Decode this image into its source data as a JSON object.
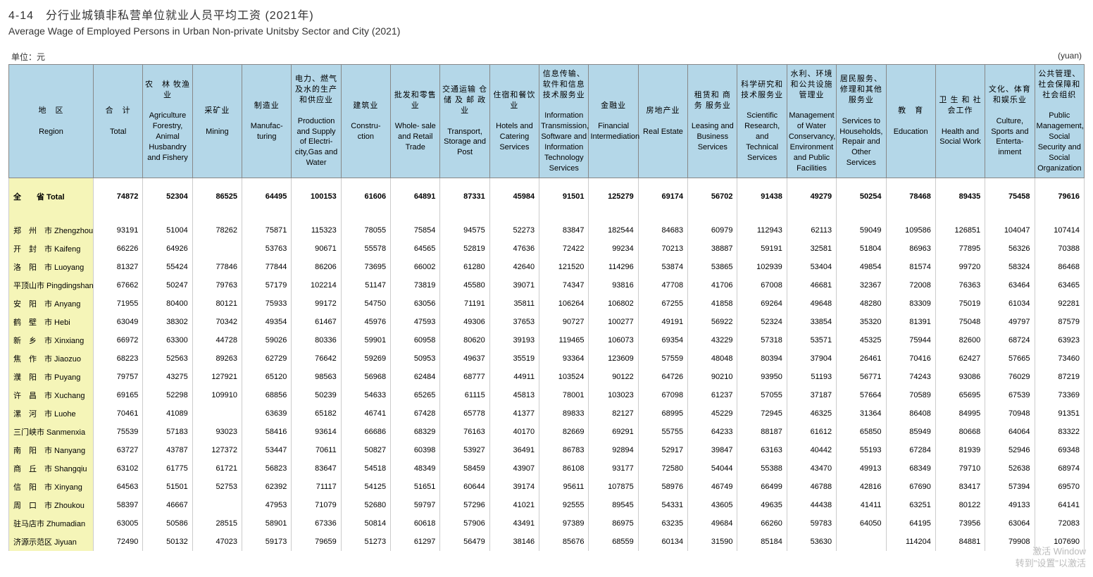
{
  "title": {
    "cn": "4-14　分行业城镇非私营单位就业人员平均工资 (2021年)",
    "en": "Average Wage of Employed Persons in Urban Non-private Unitsby Sector and City (2021)"
  },
  "unit": {
    "left": "单位：元",
    "right": "(yuan)"
  },
  "columns": [
    {
      "cn": "地　区",
      "en": "Region"
    },
    {
      "cn": "合　计",
      "en": "Total"
    },
    {
      "cn": "农　林 牧渔业",
      "en": "Agriculture Forestry, Animal Husbandry and Fishery"
    },
    {
      "cn": "采矿业",
      "en": "Mining"
    },
    {
      "cn": "制造业",
      "en": "Manufac- turing"
    },
    {
      "cn": "电力、燃气及水的生产和供应业",
      "en": "Production and Supply of Electri- city,Gas and Water"
    },
    {
      "cn": "建筑业",
      "en": "Constru- ction"
    },
    {
      "cn": "批发和零售业",
      "en": "Whole- sale and Retail Trade"
    },
    {
      "cn": "交通运输 仓 储 及 邮 政 业",
      "en": "Transport, Storage and Post"
    },
    {
      "cn": "住宿和餐饮业",
      "en": "Hotels and Catering Services"
    },
    {
      "cn": "信息传输、软件和信息技术服务业",
      "en": "Information Transmission, Software and Information Technology Services"
    },
    {
      "cn": "金融业",
      "en": "Financial Intermediation"
    },
    {
      "cn": "房地产业",
      "en": "Real Estate"
    },
    {
      "cn": "租赁和 商　务 服务业",
      "en": "Leasing and Business Services"
    },
    {
      "cn": "科学研究和技术服务业",
      "en": "Scientific Research, and Technical Services"
    },
    {
      "cn": "水利、环境和公共设施管理业",
      "en": "Management of Water Conservancy, Environment and Public Facilities"
    },
    {
      "cn": "居民服务、修理和其他服务业",
      "en": "Services to Households, Repair and Other Services"
    },
    {
      "cn": "教　育",
      "en": "Education"
    },
    {
      "cn": "卫 生 和 社会工作",
      "en": "Health and Social Work"
    },
    {
      "cn": "文化、体育和娱乐业",
      "en": "Culture, Sports and Enterta- inment"
    },
    {
      "cn": "公共管理、社会保障和社会组织",
      "en": "Public Management, Social Security and Social Organization"
    }
  ],
  "rows": [
    {
      "region_cn": "全　　省",
      "region_en": "Total",
      "total": true,
      "v": [
        74872,
        52304,
        86525,
        64495,
        100153,
        61606,
        64891,
        87331,
        45984,
        91501,
        125279,
        69174,
        56702,
        91438,
        49279,
        50254,
        78468,
        89435,
        75458,
        79616
      ]
    },
    {
      "region_cn": "郑　州　市",
      "region_en": "Zhengzhou",
      "v": [
        93191,
        51004,
        78262,
        75871,
        115323,
        78055,
        75854,
        94575,
        52273,
        83847,
        182544,
        84683,
        60979,
        112943,
        62113,
        59049,
        109586,
        126851,
        104047,
        107414
      ]
    },
    {
      "region_cn": "开　封　市",
      "region_en": "Kaifeng",
      "v": [
        66226,
        64926,
        "",
        53763,
        90671,
        55578,
        64565,
        52819,
        47636,
        72422,
        99234,
        70213,
        38887,
        59191,
        32581,
        51804,
        86963,
        77895,
        56326,
        70388
      ]
    },
    {
      "region_cn": "洛　阳　市",
      "region_en": "Luoyang",
      "v": [
        81327,
        55424,
        77846,
        77844,
        86206,
        73695,
        66002,
        61280,
        42640,
        121520,
        114296,
        53874,
        53865,
        102939,
        53404,
        49854,
        81574,
        99720,
        58324,
        86468
      ]
    },
    {
      "region_cn": "平顶山市",
      "region_en": "Pingdingshan",
      "v": [
        67662,
        50247,
        79763,
        57179,
        102214,
        51147,
        73819,
        45580,
        39071,
        74347,
        93816,
        47708,
        41706,
        67008,
        46681,
        32367,
        72008,
        76363,
        63464,
        63465
      ]
    },
    {
      "region_cn": "安　阳　市",
      "region_en": "Anyang",
      "v": [
        71955,
        80400,
        80121,
        75933,
        99172,
        54750,
        63056,
        71191,
        35811,
        106264,
        106802,
        67255,
        41858,
        69264,
        49648,
        48280,
        83309,
        75019,
        61034,
        92281
      ]
    },
    {
      "region_cn": "鹤　壁　市",
      "region_en": "Hebi",
      "v": [
        63049,
        38302,
        70342,
        49354,
        61467,
        45976,
        47593,
        49306,
        37653,
        90727,
        100277,
        49191,
        56922,
        52324,
        33854,
        35320,
        81391,
        75048,
        49797,
        87579
      ]
    },
    {
      "region_cn": "新　乡　市",
      "region_en": "Xinxiang",
      "v": [
        66972,
        63300,
        44728,
        59026,
        80336,
        59901,
        60958,
        80620,
        39193,
        119465,
        106073,
        69354,
        43229,
        57318,
        53571,
        45325,
        75944,
        82600,
        68724,
        63923
      ]
    },
    {
      "region_cn": "焦　作　市",
      "region_en": "Jiaozuo",
      "v": [
        68223,
        52563,
        89263,
        62729,
        76642,
        59269,
        50953,
        49637,
        35519,
        93364,
        123609,
        57559,
        48048,
        80394,
        37904,
        26461,
        70416,
        62427,
        57665,
        73460
      ]
    },
    {
      "region_cn": "濮　阳　市",
      "region_en": "Puyang",
      "v": [
        79757,
        43275,
        127921,
        65120,
        98563,
        56968,
        62484,
        68777,
        44911,
        103524,
        90122,
        64726,
        90210,
        93950,
        51193,
        56771,
        74243,
        93086,
        76029,
        87219
      ]
    },
    {
      "region_cn": "许　昌　市",
      "region_en": "Xuchang",
      "v": [
        69165,
        52298,
        109910,
        68856,
        50239,
        54633,
        65265,
        61115,
        45813,
        78001,
        103023,
        67098,
        61237,
        57055,
        37187,
        57664,
        70589,
        65695,
        67539,
        73369
      ]
    },
    {
      "region_cn": "漯　河　市",
      "region_en": "Luohe",
      "v": [
        70461,
        41089,
        "",
        63639,
        65182,
        46741,
        67428,
        65778,
        41377,
        89833,
        82127,
        68995,
        45229,
        72945,
        46325,
        31364,
        86408,
        84995,
        70948,
        91351
      ]
    },
    {
      "region_cn": "三门峡市",
      "region_en": "Sanmenxia",
      "v": [
        75539,
        57183,
        93023,
        58416,
        93614,
        66686,
        68329,
        76163,
        40170,
        82669,
        69291,
        55755,
        64233,
        88187,
        61612,
        65850,
        85949,
        80668,
        64064,
        83322
      ]
    },
    {
      "region_cn": "南　阳　市",
      "region_en": "Nanyang",
      "v": [
        63727,
        43787,
        127372,
        53447,
        70611,
        50827,
        60398,
        53927,
        36491,
        86783,
        92894,
        52917,
        39847,
        63163,
        40442,
        55193,
        67284,
        81939,
        52946,
        69348
      ]
    },
    {
      "region_cn": "商　丘　市",
      "region_en": "Shangqiu",
      "v": [
        63102,
        61775,
        61721,
        56823,
        83647,
        54518,
        48349,
        58459,
        43907,
        86108,
        93177,
        72580,
        54044,
        55388,
        43470,
        49913,
        68349,
        79710,
        52638,
        68974
      ]
    },
    {
      "region_cn": "信　阳　市",
      "region_en": "Xinyang",
      "v": [
        64563,
        51501,
        52753,
        62392,
        71117,
        54125,
        51651,
        60644,
        39174,
        95611,
        107875,
        58976,
        46749,
        66499,
        46788,
        42816,
        67690,
        83417,
        57394,
        69570
      ]
    },
    {
      "region_cn": "周　口　市",
      "region_en": "Zhoukou",
      "v": [
        58397,
        46667,
        "",
        47953,
        71079,
        52680,
        59797,
        57296,
        41021,
        92555,
        89545,
        54331,
        43605,
        49635,
        44438,
        41411,
        63251,
        80122,
        49133,
        64141
      ]
    },
    {
      "region_cn": "驻马店市",
      "region_en": "Zhumadian",
      "v": [
        63005,
        50586,
        28515,
        58901,
        67336,
        50814,
        60618,
        57906,
        43491,
        97389,
        86975,
        63235,
        49684,
        66260,
        59783,
        64050,
        64195,
        73956,
        63064,
        72083
      ]
    },
    {
      "region_cn": "济源示范区",
      "region_en": "Jiyuan",
      "v": [
        72490,
        50132,
        47023,
        59173,
        79659,
        51273,
        61297,
        56479,
        38146,
        85676,
        68559,
        60134,
        31590,
        85184,
        53630,
        "",
        114204,
        84881,
        79908,
        107690
      ]
    }
  ],
  "watermark": {
    "line1": "激活 Window",
    "line2": "转到\"设置\"以激活"
  }
}
